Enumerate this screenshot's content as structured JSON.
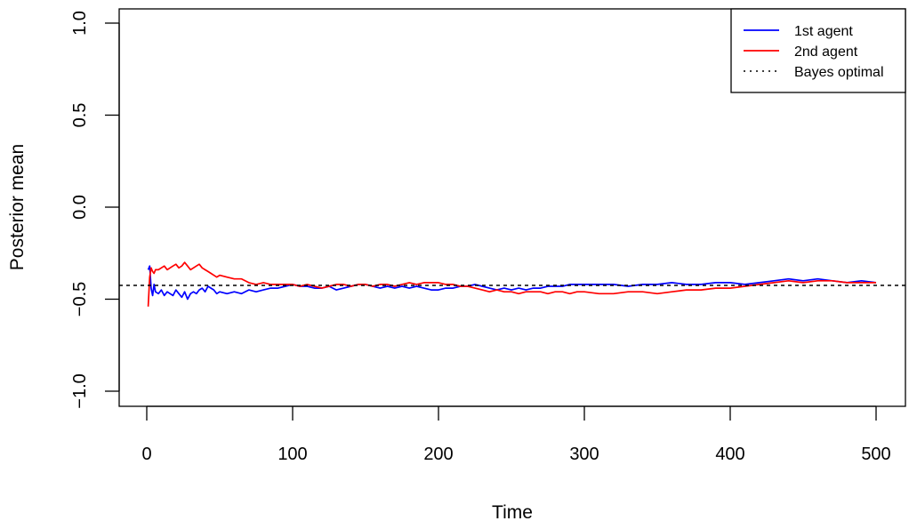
{
  "chart_data": {
    "type": "line",
    "title": "",
    "xlabel": "Time",
    "ylabel": "Posterior mean",
    "xlim": [
      0,
      500
    ],
    "ylim": [
      -1.0,
      1.0
    ],
    "x_ticks": [
      0,
      100,
      200,
      300,
      400,
      500
    ],
    "x_tick_labels": [
      "0",
      "100",
      "200",
      "300",
      "400",
      "500"
    ],
    "y_ticks": [
      -1.0,
      -0.5,
      0.0,
      0.5,
      1.0
    ],
    "y_tick_labels": [
      "−1.0",
      "−0.5",
      "0.0",
      "0.5",
      "1.0"
    ],
    "grid": false,
    "legend_position": "top-right",
    "series": [
      {
        "name": "1st agent",
        "color": "#0000ff",
        "style": "solid",
        "x": [
          1,
          2,
          3,
          4,
          5,
          6,
          8,
          10,
          12,
          14,
          16,
          18,
          20,
          22,
          24,
          26,
          28,
          30,
          32,
          34,
          36,
          38,
          40,
          42,
          44,
          46,
          48,
          50,
          55,
          60,
          65,
          70,
          75,
          80,
          85,
          90,
          95,
          100,
          105,
          110,
          115,
          120,
          125,
          130,
          135,
          140,
          145,
          150,
          155,
          160,
          165,
          170,
          175,
          180,
          185,
          190,
          195,
          200,
          205,
          210,
          215,
          220,
          225,
          230,
          235,
          240,
          245,
          250,
          255,
          260,
          265,
          270,
          275,
          280,
          285,
          290,
          295,
          300,
          310,
          320,
          330,
          340,
          350,
          360,
          370,
          380,
          390,
          400,
          410,
          420,
          430,
          440,
          450,
          460,
          470,
          480,
          490,
          500
        ],
        "y": [
          -0.34,
          -0.32,
          -0.44,
          -0.48,
          -0.42,
          -0.46,
          -0.47,
          -0.45,
          -0.48,
          -0.46,
          -0.47,
          -0.48,
          -0.45,
          -0.47,
          -0.49,
          -0.46,
          -0.5,
          -0.47,
          -0.46,
          -0.47,
          -0.45,
          -0.44,
          -0.46,
          -0.43,
          -0.44,
          -0.45,
          -0.47,
          -0.46,
          -0.47,
          -0.46,
          -0.47,
          -0.45,
          -0.46,
          -0.45,
          -0.44,
          -0.44,
          -0.43,
          -0.42,
          -0.43,
          -0.43,
          -0.44,
          -0.44,
          -0.43,
          -0.45,
          -0.44,
          -0.43,
          -0.42,
          -0.42,
          -0.43,
          -0.44,
          -0.43,
          -0.44,
          -0.43,
          -0.44,
          -0.43,
          -0.44,
          -0.45,
          -0.45,
          -0.44,
          -0.44,
          -0.43,
          -0.43,
          -0.42,
          -0.43,
          -0.44,
          -0.45,
          -0.44,
          -0.45,
          -0.44,
          -0.45,
          -0.44,
          -0.44,
          -0.43,
          -0.43,
          -0.43,
          -0.42,
          -0.42,
          -0.42,
          -0.42,
          -0.42,
          -0.43,
          -0.42,
          -0.42,
          -0.41,
          -0.42,
          -0.42,
          -0.41,
          -0.41,
          -0.42,
          -0.41,
          -0.4,
          -0.39,
          -0.4,
          -0.39,
          -0.4,
          -0.41,
          -0.4,
          -0.41
        ]
      },
      {
        "name": "2nd agent",
        "color": "#ff0000",
        "style": "solid",
        "x": [
          1,
          2,
          3,
          4,
          5,
          6,
          8,
          10,
          12,
          14,
          16,
          18,
          20,
          22,
          24,
          26,
          28,
          30,
          32,
          34,
          36,
          38,
          40,
          42,
          44,
          46,
          48,
          50,
          55,
          60,
          65,
          70,
          75,
          80,
          85,
          90,
          95,
          100,
          105,
          110,
          115,
          120,
          125,
          130,
          135,
          140,
          145,
          150,
          155,
          160,
          165,
          170,
          175,
          180,
          185,
          190,
          195,
          200,
          205,
          210,
          215,
          220,
          225,
          230,
          235,
          240,
          245,
          250,
          255,
          260,
          265,
          270,
          275,
          280,
          285,
          290,
          295,
          300,
          310,
          320,
          330,
          340,
          350,
          360,
          370,
          380,
          390,
          400,
          410,
          420,
          430,
          440,
          450,
          460,
          470,
          480,
          490,
          500
        ],
        "y": [
          -0.54,
          -0.38,
          -0.33,
          -0.35,
          -0.36,
          -0.34,
          -0.34,
          -0.33,
          -0.32,
          -0.34,
          -0.33,
          -0.32,
          -0.31,
          -0.33,
          -0.32,
          -0.3,
          -0.32,
          -0.34,
          -0.33,
          -0.32,
          -0.31,
          -0.33,
          -0.34,
          -0.35,
          -0.36,
          -0.37,
          -0.38,
          -0.37,
          -0.38,
          -0.39,
          -0.39,
          -0.41,
          -0.42,
          -0.41,
          -0.42,
          -0.42,
          -0.42,
          -0.42,
          -0.43,
          -0.42,
          -0.43,
          -0.44,
          -0.43,
          -0.42,
          -0.42,
          -0.43,
          -0.42,
          -0.42,
          -0.43,
          -0.42,
          -0.42,
          -0.43,
          -0.42,
          -0.41,
          -0.42,
          -0.41,
          -0.41,
          -0.41,
          -0.42,
          -0.42,
          -0.43,
          -0.43,
          -0.44,
          -0.45,
          -0.46,
          -0.45,
          -0.46,
          -0.46,
          -0.47,
          -0.46,
          -0.46,
          -0.46,
          -0.47,
          -0.46,
          -0.46,
          -0.47,
          -0.46,
          -0.46,
          -0.47,
          -0.47,
          -0.46,
          -0.46,
          -0.47,
          -0.46,
          -0.45,
          -0.45,
          -0.44,
          -0.44,
          -0.43,
          -0.42,
          -0.41,
          -0.4,
          -0.41,
          -0.4,
          -0.4,
          -0.41,
          -0.41,
          -0.41
        ]
      },
      {
        "name": "Bayes optimal",
        "color": "#000000",
        "style": "dotted",
        "x": [
          0,
          500
        ],
        "y": [
          -0.425,
          -0.425
        ]
      }
    ]
  }
}
